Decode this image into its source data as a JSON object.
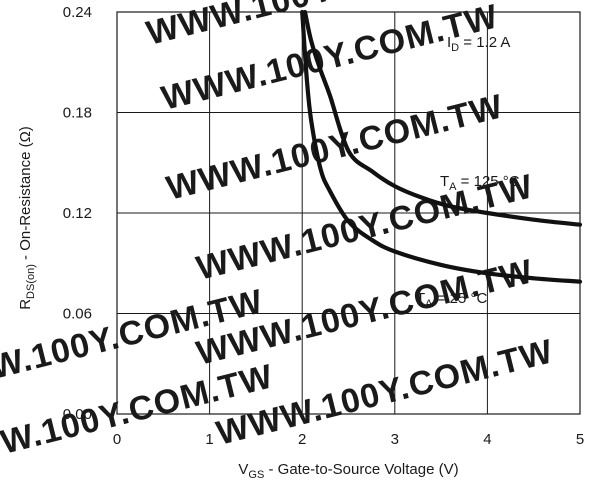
{
  "chart_data": {
    "type": "line",
    "xlabel": {
      "main": "V",
      "sub": "GS",
      "rest": " - Gate-to-Source Voltage (V)"
    },
    "ylabel": {
      "main": "R",
      "sub": "DS(on)",
      "rest": " - On-Resistance (Ω)"
    },
    "xlim": [
      0,
      5
    ],
    "ylim": [
      0,
      0.24
    ],
    "x_ticks": [
      "0",
      "1",
      "2",
      "3",
      "4",
      "5"
    ],
    "y_ticks": [
      "0.00",
      "0.06",
      "0.12",
      "0.18",
      "0.24"
    ],
    "grid": true,
    "series": [
      {
        "name": "T_A = 125 °C",
        "x": [
          2.03,
          2.1,
          2.2,
          2.3,
          2.5,
          2.75,
          3.0,
          3.3,
          3.6,
          4.0,
          4.5,
          5.0
        ],
        "y": [
          0.24,
          0.222,
          0.205,
          0.19,
          0.157,
          0.145,
          0.136,
          0.129,
          0.124,
          0.12,
          0.116,
          0.113
        ]
      },
      {
        "name": "T_A = 25 °C",
        "x": [
          2.0,
          2.05,
          2.1,
          2.2,
          2.3,
          2.5,
          2.75,
          3.0,
          3.5,
          4.0,
          4.5,
          5.0
        ],
        "y": [
          0.24,
          0.2,
          0.174,
          0.146,
          0.133,
          0.115,
          0.104,
          0.097,
          0.089,
          0.084,
          0.081,
          0.079
        ]
      }
    ],
    "annotations": {
      "id_label": {
        "main": "I",
        "sub": "D",
        "rest": " = 1.2  A"
      },
      "t125_label": {
        "main": "T",
        "sub": "A",
        "rest": " = 125 °C"
      },
      "t25_label": {
        "main": "T",
        "sub": "A",
        "rest": " = 25 °C"
      }
    },
    "watermark": "WWW.100Y.COM.TW"
  }
}
